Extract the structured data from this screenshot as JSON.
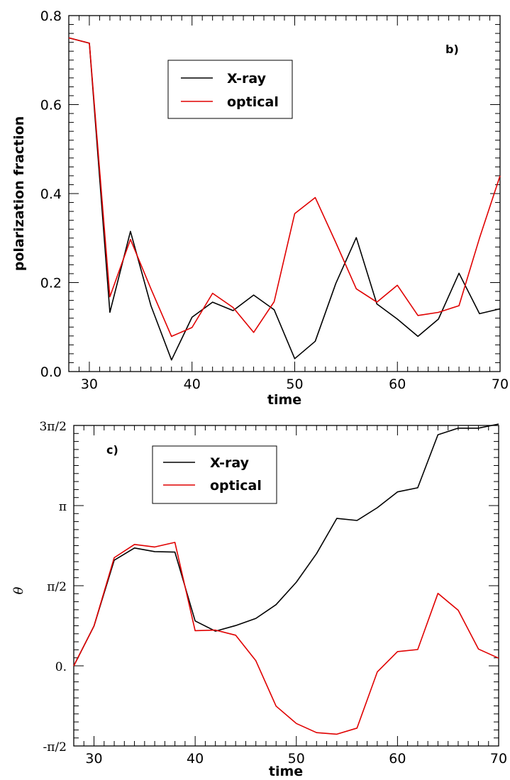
{
  "chart_data": [
    {
      "type": "line",
      "panel_label": "b)",
      "xlabel": "time",
      "ylabel": "polarization fraction",
      "xlim": [
        28,
        70
      ],
      "ylim": [
        0,
        0.8
      ],
      "x_ticks": [
        30,
        40,
        50,
        60,
        70
      ],
      "y_ticks": [
        "0.0",
        "0.2",
        "0.4",
        "0.6",
        "0.8"
      ],
      "y_tick_values": [
        0,
        0.2,
        0.4,
        0.6,
        0.8
      ],
      "legend_position": "top-center",
      "series": [
        {
          "name": "X-ray",
          "color": "#000000",
          "x": [
            28,
            30,
            32,
            34,
            36,
            38,
            40,
            42,
            44,
            46,
            48,
            50,
            52,
            54,
            56,
            58,
            60,
            62,
            64,
            66,
            68,
            70
          ],
          "values": [
            0.75,
            0.738,
            0.133,
            0.315,
            0.148,
            0.026,
            0.122,
            0.156,
            0.137,
            0.172,
            0.139,
            0.029,
            0.068,
            0.198,
            0.301,
            0.152,
            0.118,
            0.079,
            0.118,
            0.221,
            0.13,
            0.141
          ]
        },
        {
          "name": "optical",
          "color": "#e00000",
          "x": [
            28,
            30,
            32,
            34,
            36,
            38,
            40,
            42,
            44,
            46,
            48,
            50,
            52,
            54,
            56,
            58,
            60,
            62,
            64,
            66,
            68,
            70
          ],
          "values": [
            0.75,
            0.738,
            0.168,
            0.297,
            0.186,
            0.079,
            0.099,
            0.176,
            0.144,
            0.088,
            0.157,
            0.355,
            0.391,
            0.29,
            0.186,
            0.156,
            0.194,
            0.126,
            0.133,
            0.148,
            0.3,
            0.44
          ]
        }
      ]
    },
    {
      "type": "line",
      "panel_label": "c)",
      "xlabel": "time",
      "ylabel": "θ",
      "xlim": [
        28,
        70
      ],
      "ylim": [
        -1.5708,
        4.7124
      ],
      "x_ticks": [
        30,
        40,
        50,
        60,
        70
      ],
      "y_ticks": [
        "-π/2",
        "0.",
        "π/2",
        "π",
        "3π/2"
      ],
      "y_tick_values": [
        -1.5708,
        0,
        1.5708,
        3.1416,
        4.7124
      ],
      "legend_position": "top-left",
      "series": [
        {
          "name": "X-ray",
          "color": "#000000",
          "x": [
            28,
            30,
            32,
            34,
            36,
            38,
            40,
            42,
            44,
            46,
            48,
            50,
            52,
            54,
            56,
            58,
            60,
            62,
            64,
            66,
            68,
            70
          ],
          "values": [
            0.0,
            0.78,
            2.07,
            2.31,
            2.24,
            2.23,
            0.88,
            0.68,
            0.79,
            0.93,
            1.2,
            1.64,
            2.2,
            2.89,
            2.85,
            3.1,
            3.41,
            3.49,
            4.53,
            4.66,
            4.66,
            4.74
          ]
        },
        {
          "name": "optical",
          "color": "#e00000",
          "x": [
            28,
            30,
            32,
            34,
            36,
            38,
            40,
            42,
            44,
            46,
            48,
            50,
            52,
            54,
            56,
            58,
            60,
            62,
            64,
            66,
            68,
            70
          ],
          "values": [
            0.0,
            0.78,
            2.12,
            2.38,
            2.33,
            2.42,
            0.69,
            0.7,
            0.6,
            0.1,
            -0.79,
            -1.13,
            -1.31,
            -1.34,
            -1.22,
            -0.12,
            0.28,
            0.32,
            1.42,
            1.09,
            0.33,
            0.15
          ]
        }
      ]
    }
  ]
}
